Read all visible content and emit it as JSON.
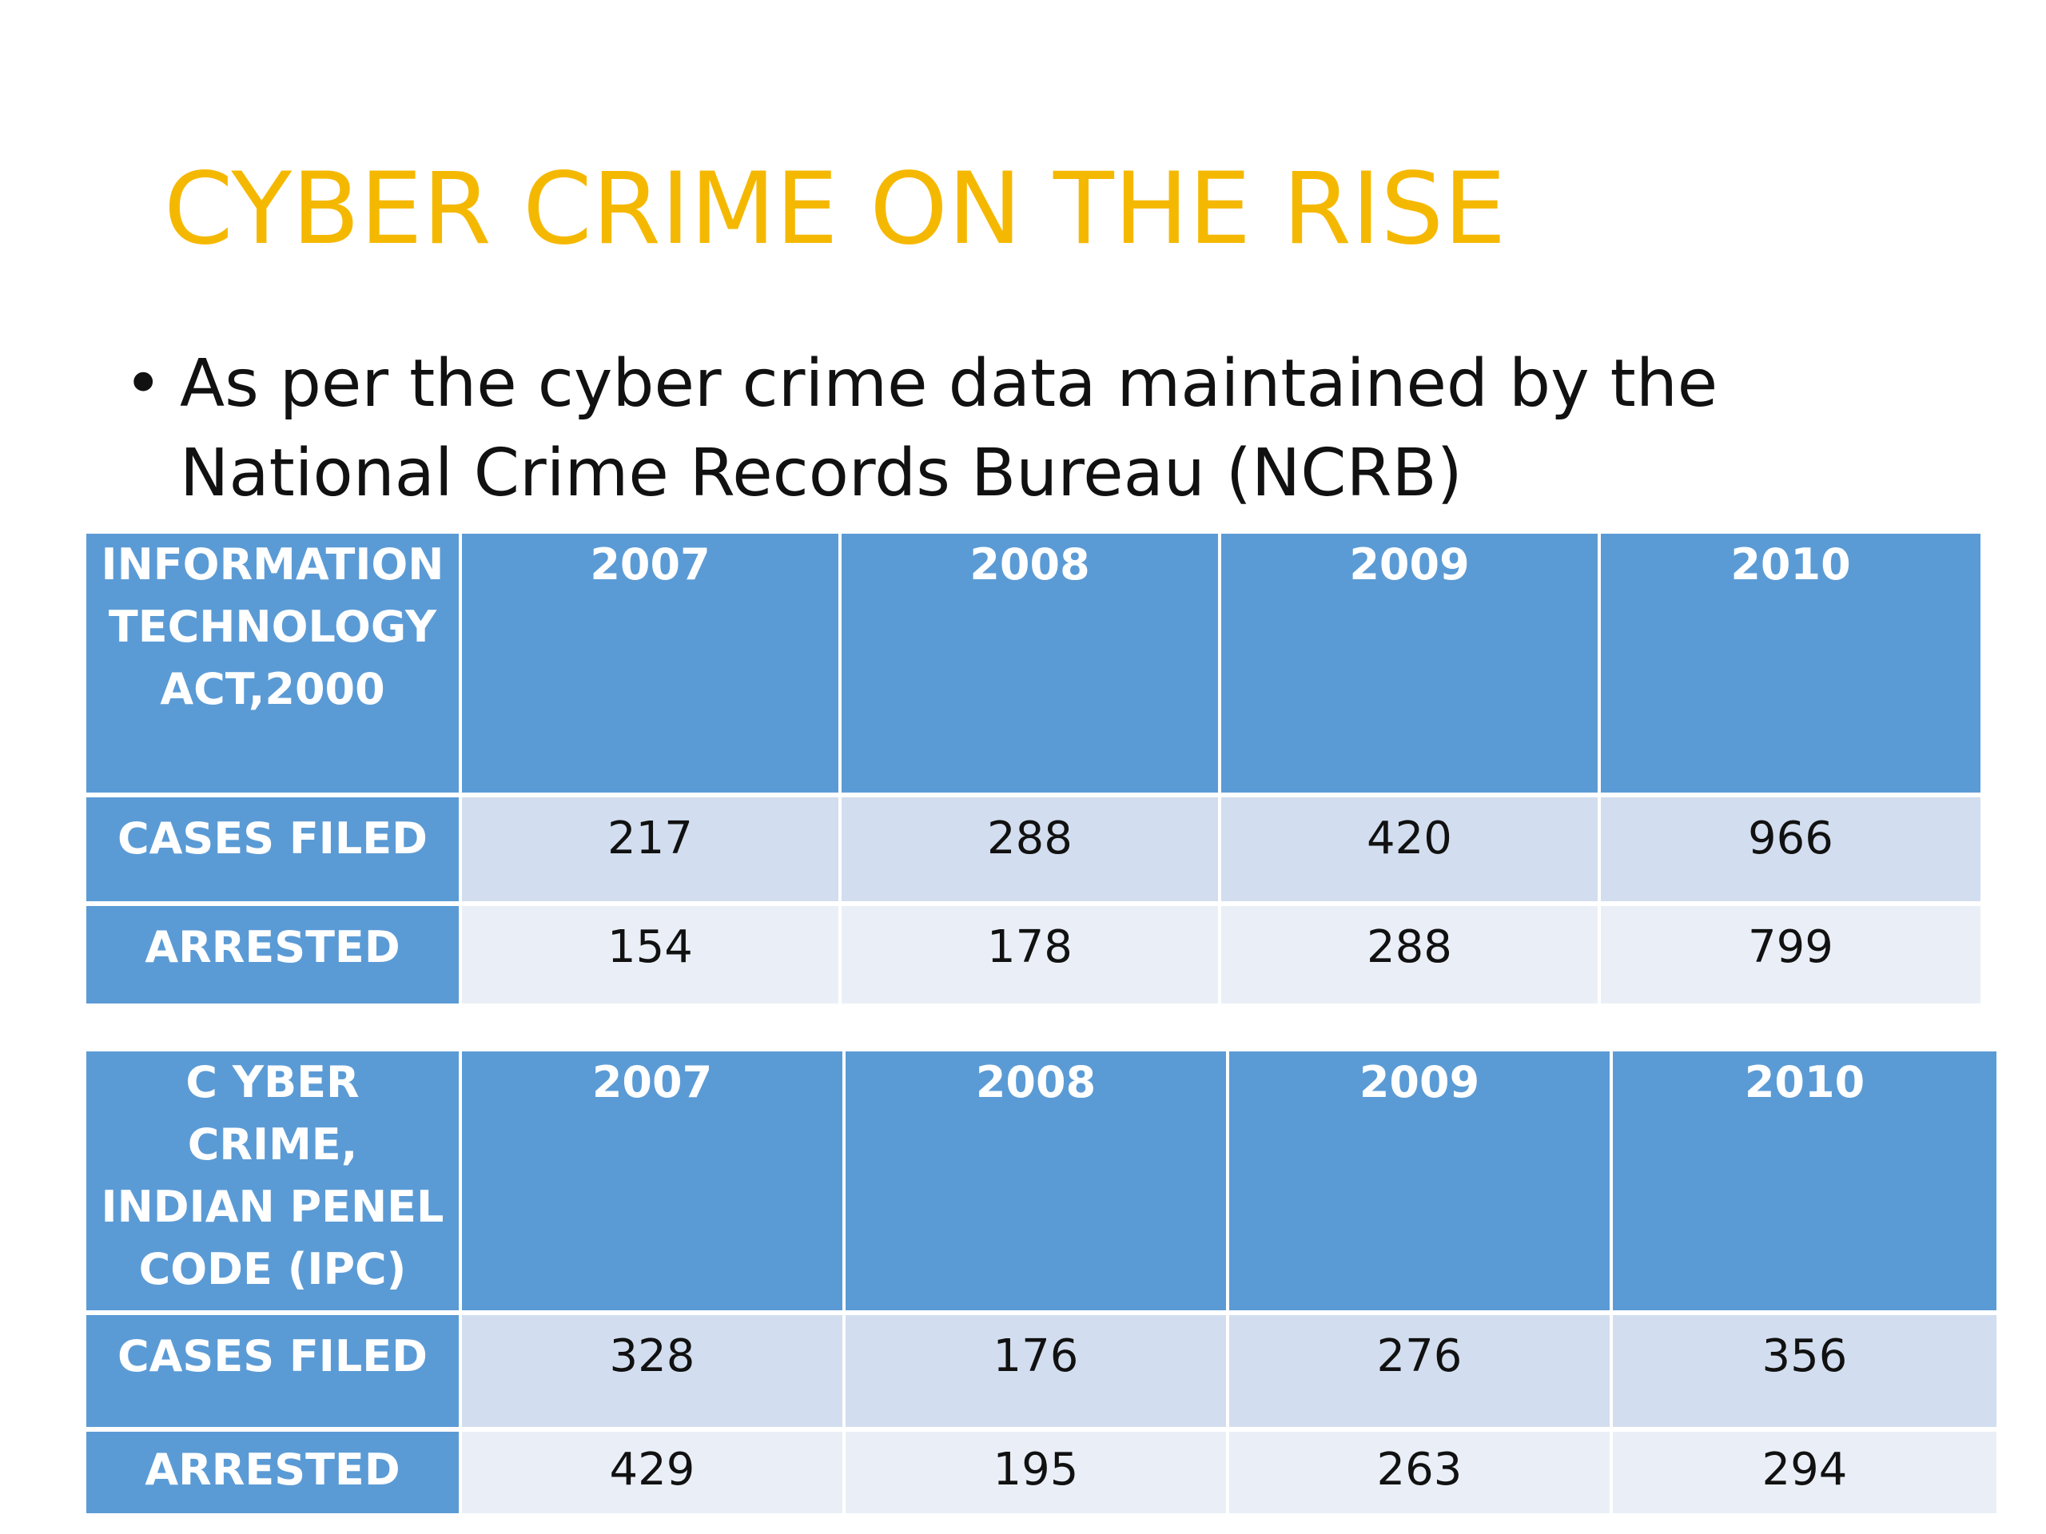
{
  "title": "CYBER CRIME ON THE RISE",
  "bullet": {
    "symbol": "•",
    "text": "As per the cyber crime data maintained by the National Crime Records Bureau (NCRB)"
  },
  "colors": {
    "title": "#f5b800",
    "header_fill": "#5b9bd5",
    "row_odd_fill": "#d2deef",
    "row_even_fill": "#eaeff7",
    "text": "#111111"
  },
  "tables": [
    {
      "header_label": "INFORMATION TECHNOLOGY ACT,2000",
      "years": [
        "2007",
        "2008",
        "2009",
        "2010"
      ],
      "rows": [
        {
          "label": "CASES FILED",
          "values": [
            "217",
            "288",
            "420",
            "966"
          ]
        },
        {
          "label": "ARRESTED",
          "values": [
            "154",
            "178",
            "288",
            "799"
          ]
        }
      ]
    },
    {
      "header_label": "C YBER CRIME, INDIAN PENEL CODE (IPC)",
      "years": [
        "2007",
        "2008",
        "2009",
        "2010"
      ],
      "rows": [
        {
          "label": "CASES FILED",
          "values": [
            "328",
            "176",
            "276",
            "356"
          ]
        },
        {
          "label": "ARRESTED",
          "values": [
            "429",
            "195",
            "263",
            "294"
          ]
        }
      ]
    }
  ]
}
